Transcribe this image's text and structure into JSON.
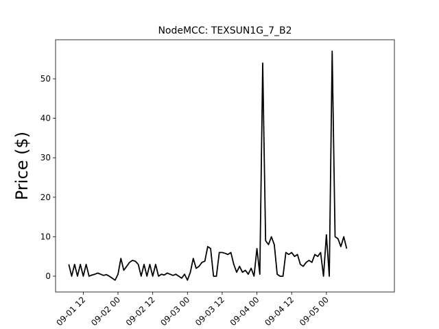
{
  "chart_data": {
    "type": "line",
    "title": "NodeMCC: TEXSUN1G_7_B2",
    "y_label": "Price ($)",
    "x": [
      7,
      8,
      9,
      10,
      11,
      12,
      13,
      14,
      15,
      16,
      17,
      18,
      19,
      20,
      21,
      22,
      23,
      24,
      25,
      26,
      27,
      28,
      29,
      30,
      31,
      32,
      33,
      34,
      35,
      36,
      37,
      38,
      39,
      40,
      41,
      42,
      43,
      44,
      45,
      46,
      47,
      48,
      49,
      50,
      51,
      52,
      53,
      54,
      55,
      56,
      57,
      58,
      59,
      60,
      61,
      62,
      63,
      64,
      65,
      66,
      67,
      68,
      69,
      70,
      71,
      72,
      73,
      74,
      75,
      76,
      77,
      78,
      79,
      80,
      81,
      82,
      83,
      84,
      85,
      86,
      87,
      88,
      89,
      90,
      91,
      92,
      93,
      94,
      95,
      96,
      97,
      98,
      99,
      100,
      101,
      102,
      103
    ],
    "series": [
      {
        "color": "#000000",
        "values": [
          3,
          0,
          3,
          0,
          3,
          0,
          3,
          0,
          0.3,
          0.5,
          0.8,
          0.5,
          0.2,
          0.4,
          0,
          -0.5,
          -1,
          0.5,
          4.5,
          1.5,
          2.5,
          3.5,
          4,
          3.8,
          3,
          0,
          3,
          0,
          3,
          0,
          3,
          0,
          0.5,
          0.3,
          0.8,
          0.5,
          0.2,
          0.5,
          0,
          -0.5,
          0.5,
          -1,
          1,
          4.5,
          2,
          2.5,
          3.5,
          3.8,
          7.5,
          7,
          0,
          0,
          6,
          6,
          5.8,
          5.5,
          6,
          3,
          1,
          2.5,
          1,
          1.5,
          0.5,
          2,
          0,
          7,
          0.5,
          54,
          9,
          8,
          10,
          8,
          0.5,
          0,
          0,
          6,
          5.5,
          6,
          5,
          5.5,
          3,
          2.5,
          3.5,
          4,
          3.5,
          5.5,
          5,
          6,
          0,
          10.5,
          0,
          57,
          10,
          9.5,
          7.5,
          10,
          7
        ]
      }
    ],
    "xlim": [
      2.43,
      119.5
    ],
    "xticks": [
      {
        "value": 12,
        "label": "09-01 12"
      },
      {
        "value": 24,
        "label": "09-02 00"
      },
      {
        "value": 36,
        "label": "09-02 12"
      },
      {
        "value": 48,
        "label": "09-03 00"
      },
      {
        "value": 60,
        "label": "09-03 12"
      },
      {
        "value": 72,
        "label": "09-04 00"
      },
      {
        "value": 84,
        "label": "09-04 12"
      },
      {
        "value": 96,
        "label": "09-05 00"
      }
    ],
    "ylim": [
      -4,
      59.9
    ],
    "yticks": [
      0,
      10,
      20,
      30,
      40,
      50
    ],
    "grid": false
  }
}
